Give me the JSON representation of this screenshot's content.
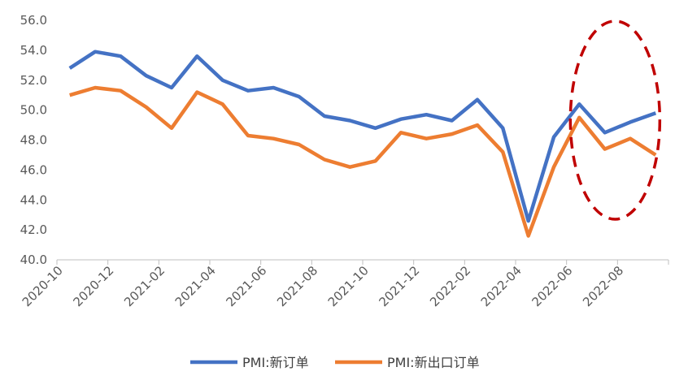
{
  "chart_data": {
    "type": "line",
    "x": [
      "2020-10",
      "2020-11",
      "2020-12",
      "2021-01",
      "2021-02",
      "2021-03",
      "2021-04",
      "2021-05",
      "2021-06",
      "2021-07",
      "2021-08",
      "2021-09",
      "2021-10",
      "2021-11",
      "2021-12",
      "2022-01",
      "2022-02",
      "2022-03",
      "2022-04",
      "2022-05",
      "2022-06",
      "2022-07",
      "2022-08",
      "2022-09"
    ],
    "x_tick_labels": [
      "2020-10",
      "2020-12",
      "2021-02",
      "2021-04",
      "2021-06",
      "2021-08",
      "2021-10",
      "2021-12",
      "2022-02",
      "2022-04",
      "2022-06",
      "2022-08"
    ],
    "ylim": [
      40.0,
      56.0
    ],
    "y_ticks": [
      "40.0",
      "42.0",
      "44.0",
      "46.0",
      "48.0",
      "50.0",
      "52.0",
      "54.0",
      "56.0"
    ],
    "grid": false,
    "legend_position": "bottom",
    "series": [
      {
        "name": "PMI:新订单",
        "color": "#4472C4",
        "values": [
          52.8,
          53.9,
          53.6,
          52.3,
          51.5,
          53.6,
          52.0,
          51.3,
          51.5,
          50.9,
          49.6,
          49.3,
          48.8,
          49.4,
          49.7,
          49.3,
          50.7,
          48.8,
          42.6,
          48.2,
          50.4,
          48.5,
          49.2,
          49.8
        ]
      },
      {
        "name": "PMI:新出口订单",
        "color": "#ED7D31",
        "values": [
          51.0,
          51.5,
          51.3,
          50.2,
          48.8,
          51.2,
          50.4,
          48.3,
          48.1,
          47.7,
          46.7,
          46.2,
          46.6,
          48.5,
          48.1,
          48.4,
          49.0,
          47.2,
          41.6,
          46.2,
          49.5,
          47.4,
          48.1,
          47.0
        ]
      }
    ],
    "annotation": {
      "shape": "dashed-ellipse",
      "color": "#C00000",
      "highlights": [
        "2022-06",
        "2022-09"
      ]
    }
  }
}
